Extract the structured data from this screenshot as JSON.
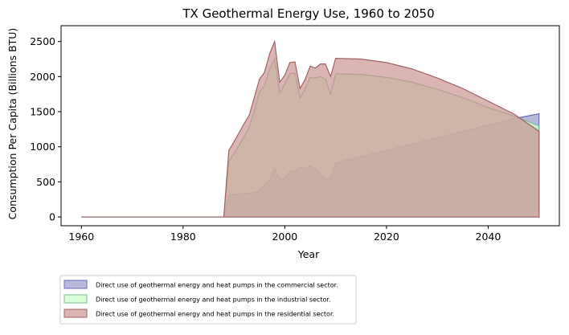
{
  "chart_data": {
    "type": "area",
    "stacked": false,
    "title": "TX Geothermal Energy Use, 1960 to 2050",
    "xlabel": "Year",
    "ylabel": "Consumption Per Capita (Billions BTU)",
    "xlim": [
      1956,
      2054
    ],
    "ylim": [
      -125,
      2725
    ],
    "xticks": [
      1960,
      1980,
      2000,
      2020,
      2040
    ],
    "yticks": [
      0,
      500,
      1000,
      1500,
      2000,
      2500
    ],
    "xtick_labels": [
      "1960",
      "1980",
      "2000",
      "2020",
      "2040"
    ],
    "ytick_labels": [
      "0",
      "500",
      "1000",
      "1500",
      "2000",
      "2500"
    ],
    "legend_position": "below",
    "x": [
      1960,
      1988,
      1989,
      1990,
      1991,
      1992,
      1993,
      1994,
      1995,
      1996,
      1997,
      1998,
      1999,
      2000,
      2001,
      2002,
      2003,
      2004,
      2005,
      2006,
      2007,
      2008,
      2009,
      2010,
      2015,
      2020,
      2025,
      2030,
      2035,
      2040,
      2045,
      2050
    ],
    "series": [
      {
        "name": "Direct use of geothermal energy and heat pumps in the commercial sector.",
        "color": "#9b9bcc",
        "edge": "#6e6eb4",
        "values": [
          0,
          0,
          310,
          320,
          330,
          335,
          340,
          345,
          375,
          460,
          520,
          690,
          540,
          550,
          650,
          660,
          700,
          700,
          725,
          680,
          620,
          530,
          550,
          770,
          860,
          950,
          1040,
          1130,
          1220,
          1310,
          1400,
          1470
        ]
      },
      {
        "name": "Direct use of geothermal energy and heat pumps in the industrial sector.",
        "color": "#c8ffc8",
        "edge": "#7ab896",
        "values": [
          0,
          0,
          790,
          900,
          1020,
          1150,
          1280,
          1510,
          1780,
          1870,
          2100,
          2260,
          1770,
          1890,
          2040,
          2050,
          1700,
          1820,
          1990,
          1980,
          2000,
          1960,
          1750,
          2040,
          2030,
          1990,
          1920,
          1820,
          1700,
          1560,
          1440,
          1300
        ]
      },
      {
        "name": "Direct use of geothermal energy and heat pumps in the residential sector.",
        "color": "#cc9494",
        "edge": "#a06464",
        "values": [
          0,
          0,
          950,
          1070,
          1200,
          1330,
          1450,
          1700,
          1960,
          2060,
          2320,
          2500,
          1920,
          2020,
          2200,
          2210,
          1830,
          1960,
          2150,
          2120,
          2180,
          2180,
          2000,
          2260,
          2250,
          2200,
          2110,
          1980,
          1830,
          1650,
          1470,
          1220
        ]
      }
    ]
  }
}
